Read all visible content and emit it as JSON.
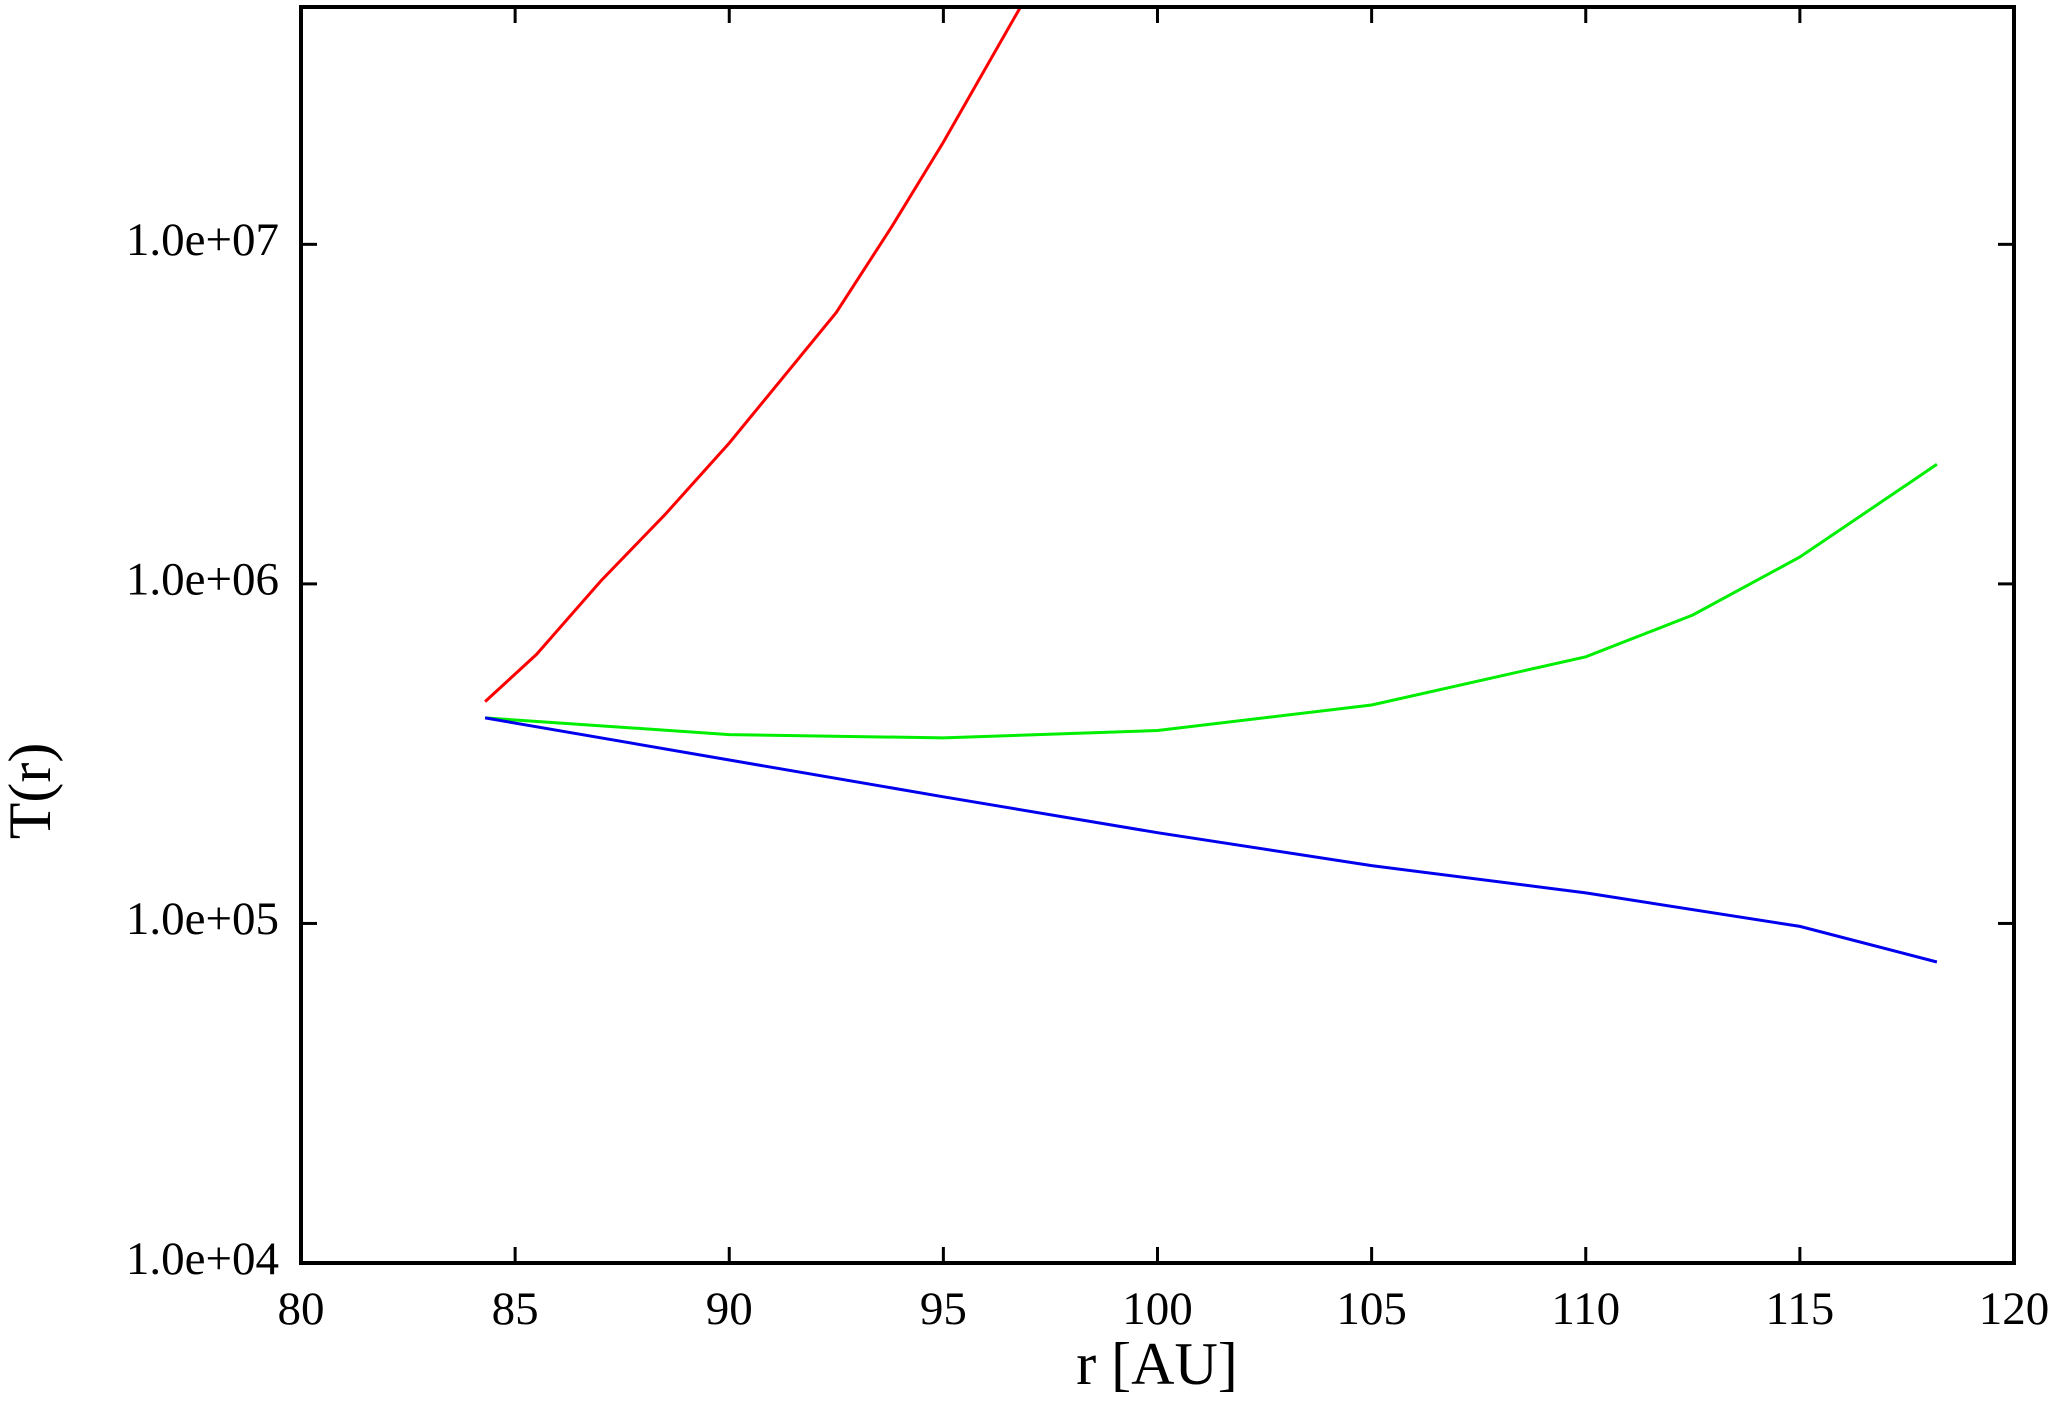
{
  "chart_data": {
    "type": "line",
    "x_label": "r [AU]",
    "y_label": "T(r)",
    "log_y": true,
    "xlim": [
      80,
      120
    ],
    "xticks": [
      80,
      85,
      90,
      95,
      100,
      105,
      110,
      115,
      120
    ],
    "ylim": [
      10000,
      50000000
    ],
    "yticks": [
      {
        "value": 10000,
        "label": "1.0e+04"
      },
      {
        "value": 100000,
        "label": "1.0e+05"
      },
      {
        "value": 1000000,
        "label": "1.0e+06"
      },
      {
        "value": 10000000,
        "label": "1.0e+07"
      }
    ],
    "series": [
      {
        "color": "#ff0000",
        "x": [
          84.3,
          85.5,
          87,
          88.5,
          90,
          92.5,
          93.8,
          95,
          96.8
        ],
        "values": [
          450000,
          620000,
          1020000,
          1600000,
          2600000,
          6300000,
          11300000,
          20000000,
          50000000
        ]
      },
      {
        "color": "#00ee00",
        "x": [
          84.3,
          90,
          95,
          100,
          105,
          110,
          112.5,
          115,
          118.2
        ],
        "values": [
          403000,
          360000,
          352000,
          370000,
          440000,
          610000,
          810000,
          1200000,
          2250000
        ]
      },
      {
        "color": "#0000ee",
        "x": [
          84.3,
          90,
          95,
          100,
          105,
          110,
          115,
          118.2
        ],
        "values": [
          403000,
          303000,
          236000,
          185000,
          148000,
          123000,
          98000,
          77000
        ]
      }
    ]
  }
}
